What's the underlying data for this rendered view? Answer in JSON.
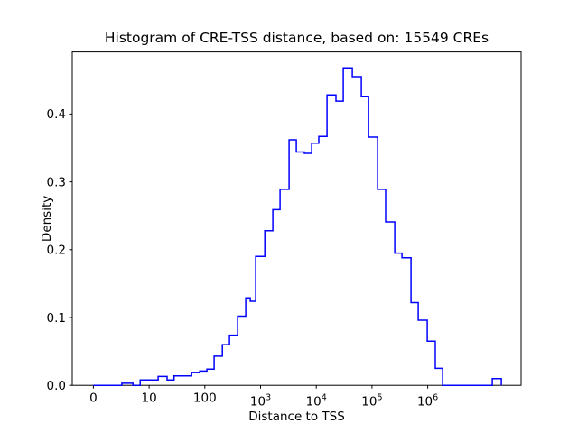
{
  "figure": {
    "background": "#ffffff",
    "frame_color": "#000000"
  },
  "title": "Histogram of CRE-TSS distance, based on: 15549 CREs",
  "x_axis": {
    "label": "Distance to TSS",
    "scale": "symlog",
    "linthresh": 10,
    "ticks": [
      {
        "text": "0",
        "sup": "",
        "value": 0
      },
      {
        "text": "10",
        "sup": "",
        "value": 10
      },
      {
        "text": "100",
        "sup": "",
        "value": 100
      },
      {
        "text": "10",
        "sup": "3",
        "value": 1000
      },
      {
        "text": "10",
        "sup": "4",
        "value": 10000
      },
      {
        "text": "10",
        "sup": "5",
        "value": 100000
      },
      {
        "text": "10",
        "sup": "6",
        "value": 1000000
      }
    ]
  },
  "y_axis": {
    "label": "Density",
    "ticks": [
      {
        "text": "0.0",
        "value": 0.0
      },
      {
        "text": "0.1",
        "value": 0.1
      },
      {
        "text": "0.2",
        "value": 0.2
      },
      {
        "text": "0.3",
        "value": 0.3
      },
      {
        "text": "0.4",
        "value": 0.4
      }
    ]
  },
  "chart_data": {
    "type": "histogram-step",
    "title": "Histogram of CRE-TSS distance, based on: 15549 CREs",
    "xlabel": "Distance to TSS",
    "ylabel": "Density",
    "n_samples": 15549,
    "line_color": "#0000ff",
    "x_scale": "symlog",
    "symlog_linthresh": 10,
    "xlim_note": "ticks at 0, 10, 100, 1e3, 1e4, 1e5, 1e6; grid off; no legend",
    "ylim": [
      0,
      0.4914
    ],
    "bins_format": [
      "x_left",
      "x_right",
      "density"
    ],
    "bins": [
      [
        0,
        5.1,
        0
      ],
      [
        5.1,
        7.1,
        0.003
      ],
      [
        7.1,
        8.4,
        0
      ],
      [
        8.4,
        14.5,
        0.008
      ],
      [
        14.5,
        21,
        0.013
      ],
      [
        21,
        28,
        0.008
      ],
      [
        28,
        58,
        0.014
      ],
      [
        58,
        81,
        0.019
      ],
      [
        81,
        109,
        0.021
      ],
      [
        109,
        147,
        0.024
      ],
      [
        147,
        206,
        0.043
      ],
      [
        206,
        277,
        0.06
      ],
      [
        277,
        387,
        0.074
      ],
      [
        387,
        542,
        0.102
      ],
      [
        542,
        653,
        0.129
      ],
      [
        653,
        817,
        0.124
      ],
      [
        817,
        1190,
        0.19
      ],
      [
        1190,
        1660,
        0.228
      ],
      [
        1660,
        2240,
        0.259
      ],
      [
        2240,
        3250,
        0.289
      ],
      [
        3250,
        4390,
        0.362
      ],
      [
        4390,
        6120,
        0.344
      ],
      [
        6120,
        8260,
        0.342
      ],
      [
        8260,
        11100,
        0.357
      ],
      [
        11100,
        15600,
        0.367
      ],
      [
        15600,
        22600,
        0.428
      ],
      [
        22600,
        30500,
        0.419
      ],
      [
        30500,
        44400,
        0.468
      ],
      [
        44400,
        64400,
        0.455
      ],
      [
        64400,
        86700,
        0.426
      ],
      [
        86700,
        126000,
        0.366
      ],
      [
        126000,
        176000,
        0.289
      ],
      [
        176000,
        256000,
        0.241
      ],
      [
        256000,
        345000,
        0.195
      ],
      [
        345000,
        501000,
        0.188
      ],
      [
        501000,
        676000,
        0.122
      ],
      [
        676000,
        982000,
        0.096
      ],
      [
        982000,
        1370000,
        0.065
      ],
      [
        1370000,
        1850000,
        0.025
      ],
      [
        1850000,
        14400000,
        0
      ],
      [
        14400000,
        20900000,
        0.01
      ]
    ]
  }
}
